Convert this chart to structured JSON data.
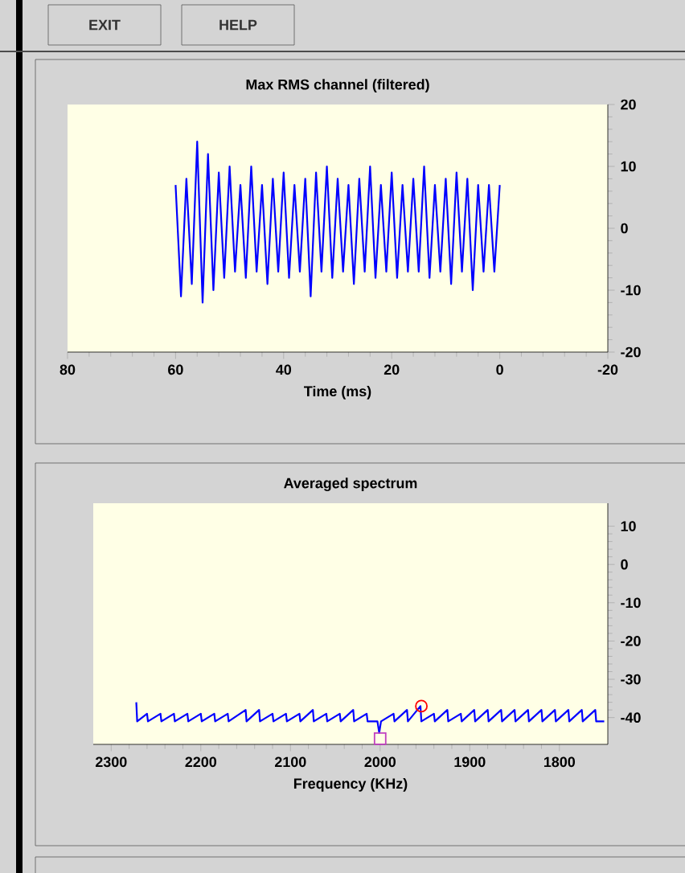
{
  "chart_data": [
    {
      "type": "line",
      "title": "Max RMS channel (filtered)",
      "xlabel": "Time (ms)",
      "annotations": [
        "EXIT",
        "HELP"
      ],
      "xlim": [
        80,
        -20
      ],
      "xticks": [
        80,
        60,
        40,
        20,
        0,
        -20
      ],
      "ylim": [
        -20,
        20
      ],
      "yticks": [
        -20,
        -10,
        0,
        10,
        20
      ],
      "series": [
        {
          "color": "#0000ff",
          "x": [
            60,
            59,
            58,
            57,
            56,
            55,
            54,
            53,
            52,
            51,
            50,
            49,
            48,
            47,
            46,
            45,
            44,
            43,
            42,
            41,
            40,
            39,
            38,
            37,
            36,
            35,
            34,
            33,
            32,
            31,
            30,
            29,
            28,
            27,
            26,
            25,
            24,
            23,
            22,
            21,
            20,
            19,
            18,
            17,
            16,
            15,
            14,
            13,
            12,
            11,
            10,
            9,
            8,
            7,
            6,
            5,
            4,
            3,
            2,
            1,
            0
          ],
          "values": [
            7,
            -11,
            8,
            -9,
            14,
            -12,
            12,
            -10,
            9,
            -8,
            10,
            -7,
            7,
            -8,
            10,
            -7,
            7,
            -9,
            8,
            -7,
            9,
            -8,
            7,
            -7,
            8,
            -11,
            9,
            -7,
            10,
            -8,
            8,
            -7,
            7,
            -9,
            8,
            -7,
            10,
            -8,
            7,
            -7,
            9,
            -8,
            7,
            -7,
            8,
            -7,
            10,
            -8,
            7,
            -7,
            8,
            -9,
            9,
            -7,
            8,
            -10,
            7,
            -7,
            7,
            -7,
            7
          ]
        }
      ]
    },
    {
      "type": "line",
      "title": "Averaged spectrum",
      "xlabel": "Frequency (KHz)",
      "xlim": [
        2320,
        1746
      ],
      "xticks": [
        2300,
        2200,
        2100,
        2000,
        1900,
        1800
      ],
      "ylim": [
        -47,
        16
      ],
      "yticks": [
        -40,
        -30,
        -20,
        -10,
        0,
        10
      ],
      "series": [
        {
          "color": "#0000ff",
          "x": [
            2272,
            2271,
            2260,
            2259,
            2245,
            2244,
            2230,
            2229,
            2215,
            2214,
            2200,
            2199,
            2185,
            2184,
            2170,
            2169,
            2150,
            2149,
            2135,
            2134,
            2120,
            2119,
            2105,
            2104,
            2090,
            2089,
            2075,
            2074,
            2060,
            2059,
            2045,
            2044,
            2030,
            2029,
            2015,
            2014,
            2003,
            2001,
            1999,
            1985,
            1984,
            1970,
            1969,
            1955,
            1954,
            1940,
            1939,
            1925,
            1924,
            1910,
            1909,
            1895,
            1894,
            1880,
            1879,
            1865,
            1864,
            1850,
            1849,
            1835,
            1834,
            1820,
            1819,
            1805,
            1804,
            1790,
            1789,
            1775,
            1774,
            1760,
            1759,
            1750
          ],
          "values": [
            -36,
            -41,
            -39,
            -41,
            -39,
            -41,
            -39,
            -41,
            -39,
            -41,
            -39,
            -41,
            -39,
            -41,
            -39,
            -41,
            -38,
            -41,
            -38,
            -41,
            -39,
            -41,
            -39,
            -41,
            -39,
            -41,
            -38,
            -41,
            -39,
            -41,
            -39,
            -41,
            -38,
            -41,
            -39,
            -41,
            -41,
            -44,
            -41,
            -39,
            -41,
            -38,
            -41,
            -37,
            -41,
            -39,
            -41,
            -38,
            -41,
            -39,
            -41,
            -38,
            -41,
            -38,
            -41,
            -38,
            -41,
            -38,
            -41,
            -38,
            -41,
            -38,
            -41,
            -38,
            -41,
            -38,
            -41,
            -38,
            -41,
            -38,
            -41,
            -41
          ]
        },
        {
          "type": "scatter",
          "marker": "circle",
          "color": "#ff0000",
          "x": [
            1954
          ],
          "values": [
            -37
          ]
        },
        {
          "type": "scatter",
          "marker": "square",
          "color": "#c040c0",
          "x": [
            2000
          ],
          "values": [
            -45.5
          ]
        }
      ]
    }
  ]
}
